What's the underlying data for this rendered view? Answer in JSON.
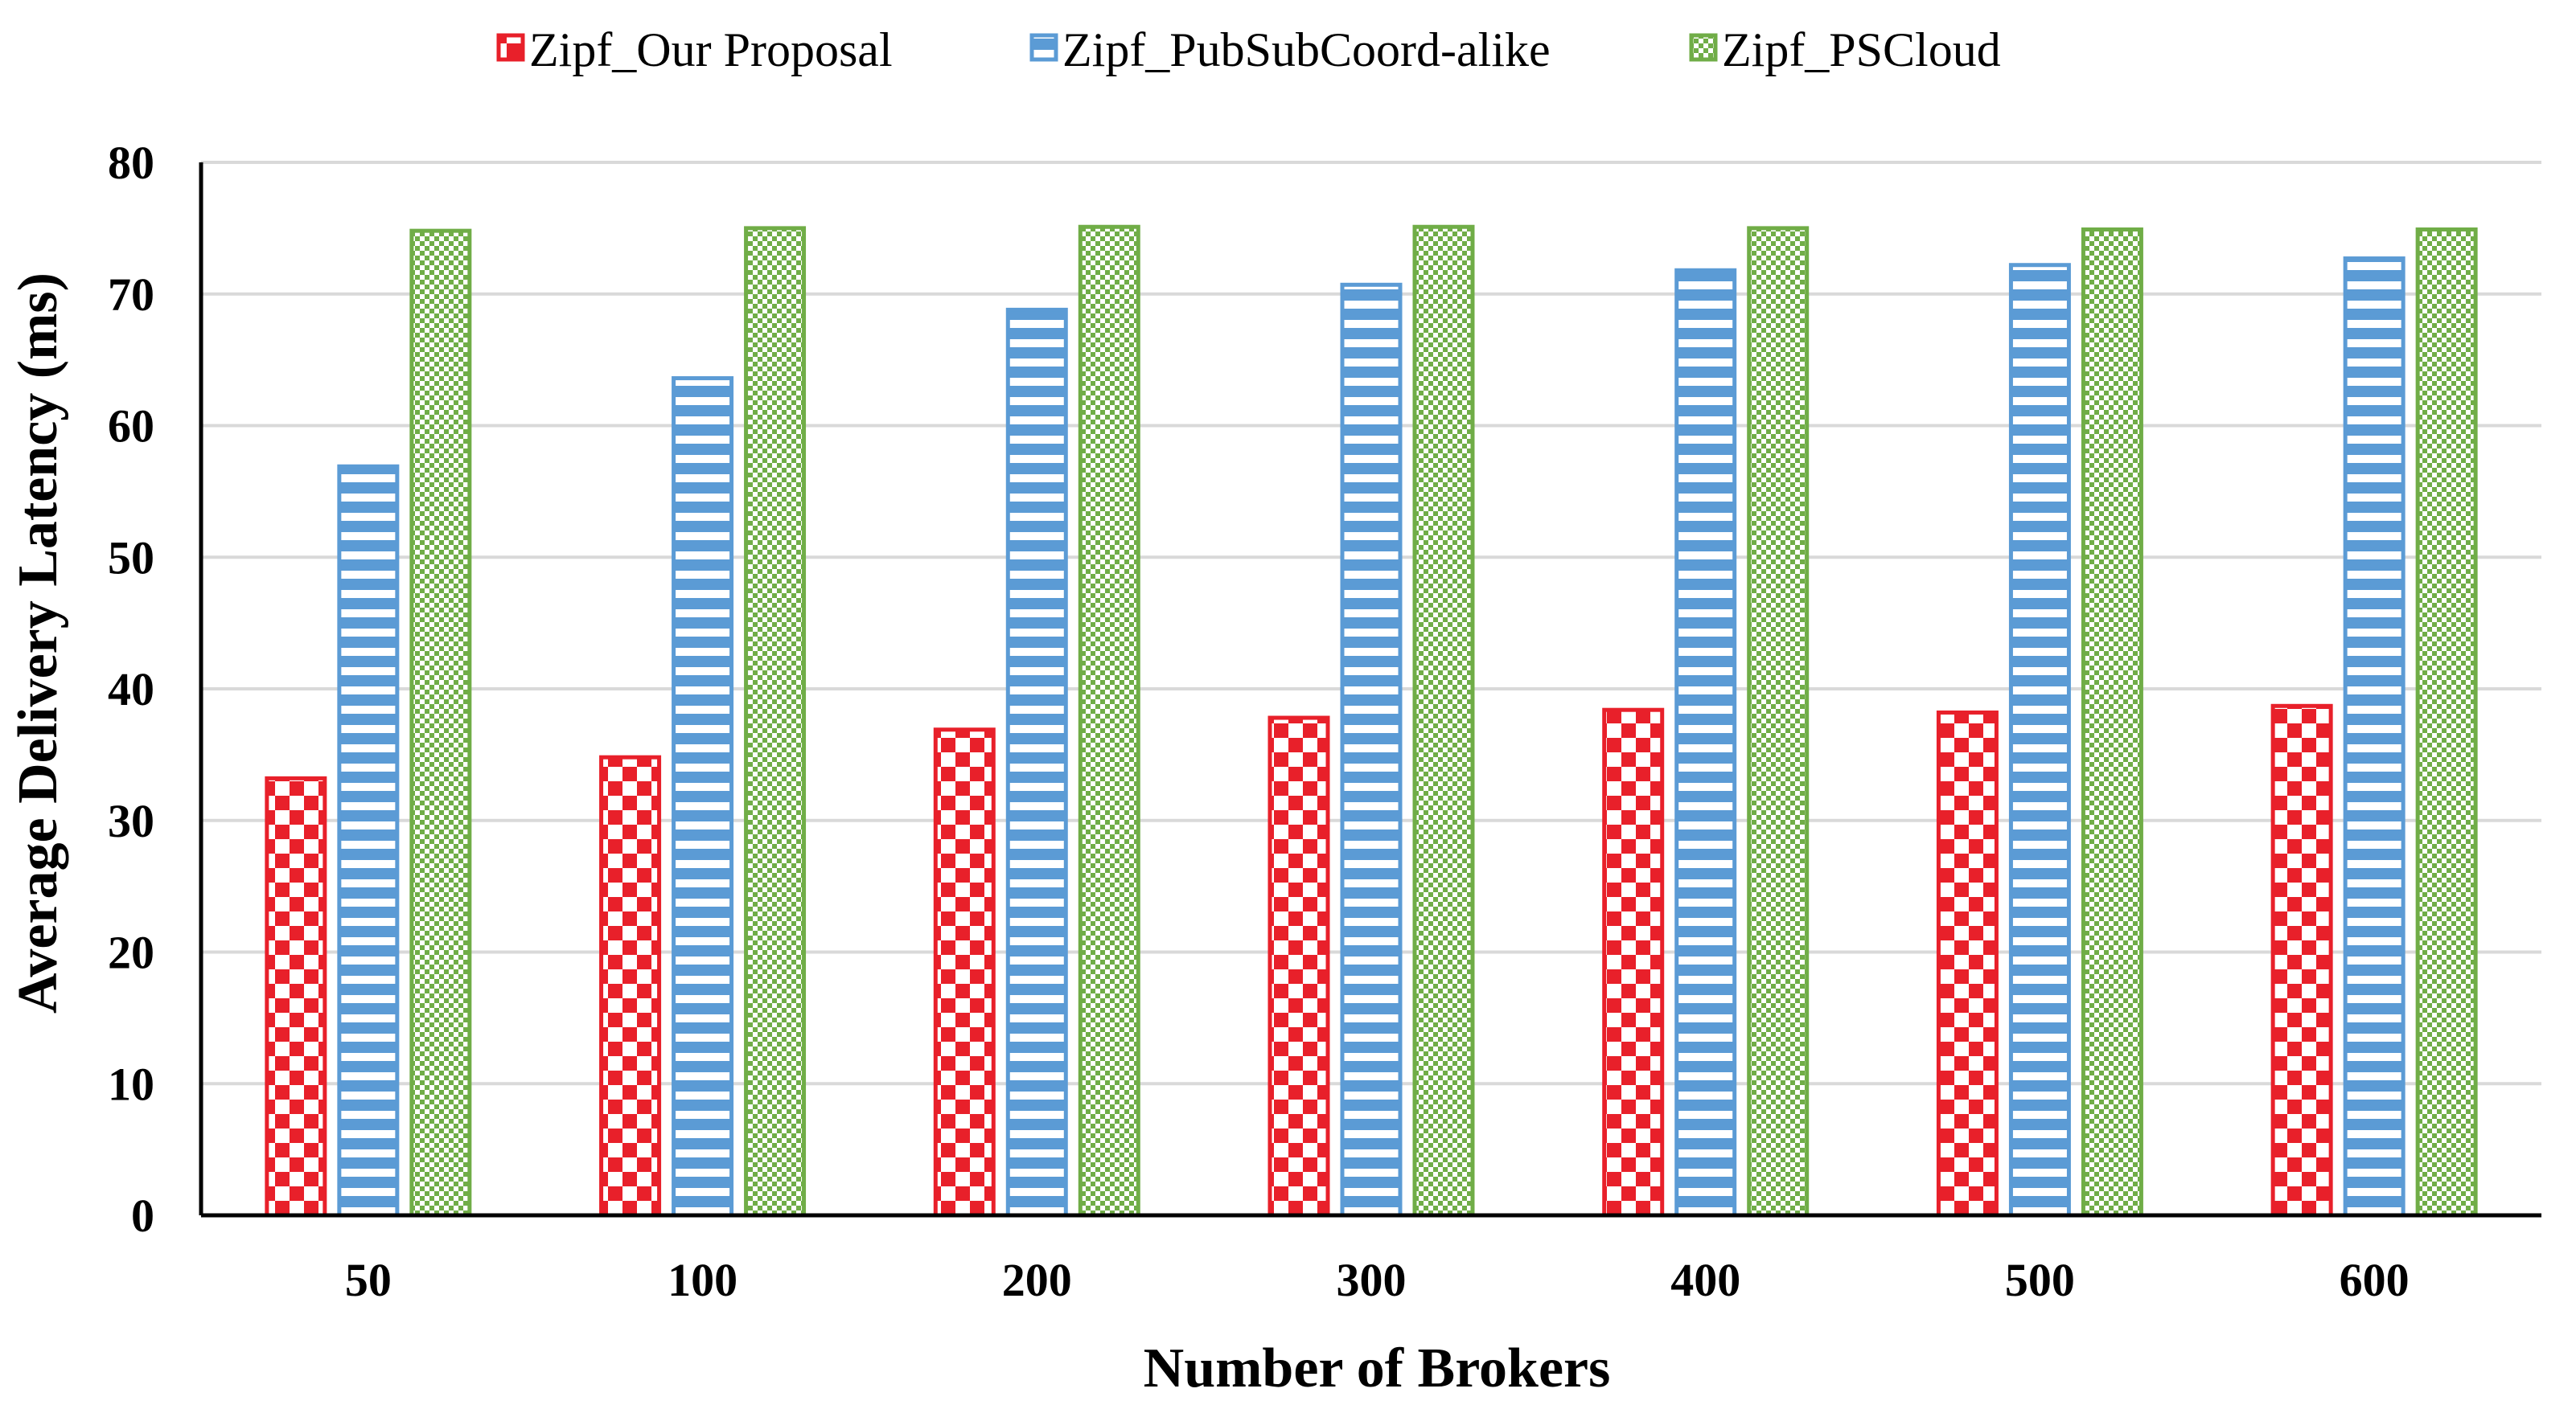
{
  "chart_data": {
    "type": "bar",
    "title": "",
    "xlabel": "Number of Brokers",
    "ylabel": "Average Delivery Latency (ms)",
    "categories": [
      "50",
      "100",
      "200",
      "300",
      "400",
      "500",
      "600"
    ],
    "ylim": [
      0,
      80
    ],
    "yticks": [
      0,
      10,
      20,
      30,
      40,
      50,
      60,
      70,
      80
    ],
    "grid": true,
    "legend": "top",
    "series": [
      {
        "name": "Zipf_Our Proposal",
        "color": "#e8202a",
        "pattern": "checker",
        "values": [
          33.2,
          34.8,
          36.9,
          37.8,
          38.4,
          38.2,
          38.7
        ]
      },
      {
        "name": "Zipf_PubSubCoord-alike",
        "color": "#5b9bd5",
        "pattern": "stripes",
        "values": [
          56.9,
          63.6,
          68.8,
          70.7,
          71.8,
          72.2,
          72.7
        ]
      },
      {
        "name": "Zipf_PSCloud",
        "color": "#70ad47",
        "pattern": "fine-checker",
        "values": [
          74.8,
          75.0,
          75.1,
          75.1,
          75.0,
          74.9,
          74.9
        ]
      }
    ]
  }
}
